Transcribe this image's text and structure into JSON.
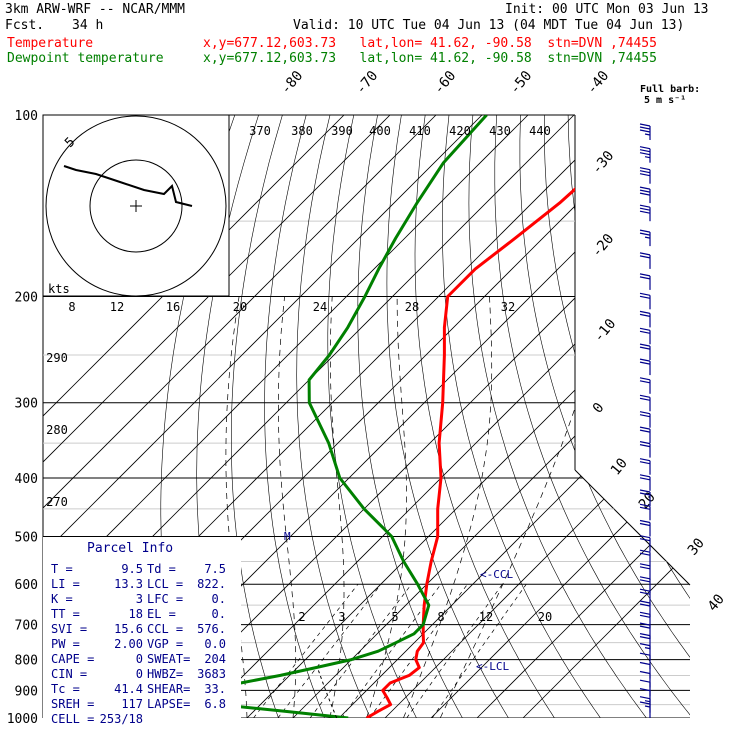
{
  "header": {
    "model": "3km ARW-WRF -- NCAR/MMM",
    "init": "Init: 00 UTC Mon 03 Jun 13",
    "fcst_label": "Fcst.",
    "fcst_value": "34 h",
    "valid": "Valid: 10 UTC Tue 04 Jun 13 (04 MDT Tue 04 Jun 13)",
    "temperature_label": "Temperature",
    "dewpoint_label": "Dewpoint temperature",
    "location_temp": "x,y=677.12,603.73   lat,lon= 41.62, -90.58  stn=DVN ,74455",
    "location_dew": "x,y=677.12,603.73   lat,lon= 41.62, -90.58  stn=DVN ,74455"
  },
  "barb_legend": {
    "line1": "Full barb:",
    "line2": "5 m s⁻¹"
  },
  "colors": {
    "temperature": "#ff0000",
    "dewpoint": "#008000",
    "barbs": "#00008b",
    "parcel": "#00008b"
  },
  "parcel_info": {
    "title": "Parcel Info",
    "rows": [
      [
        "T  =",
        "9.5",
        "Td =",
        "7.5"
      ],
      [
        "LI =",
        "13.3",
        "LCL =",
        "822."
      ],
      [
        "K  =",
        "3",
        "LFC =",
        "0."
      ],
      [
        "TT =",
        "18",
        "EL  =",
        "0."
      ],
      [
        "SVI =",
        "15.6",
        "CCL =",
        "576."
      ],
      [
        "PW =",
        "2.00",
        "VGP =",
        "0.0"
      ],
      [
        "CAPE =",
        "0",
        "SWEAT=",
        "204"
      ],
      [
        "CIN =",
        "0",
        "HWBZ=",
        "3683"
      ],
      [
        "Tc =",
        "41.4",
        "SHEAR=",
        "33."
      ],
      [
        "SREH =",
        "117",
        "LAPSE=",
        "6.8"
      ],
      [
        "CELL =",
        "253/18",
        "",
        ""
      ]
    ]
  },
  "annotations": {
    "ccl": "<-CCL",
    "lcl": "<-LCL",
    "m": "M"
  },
  "chart_data": {
    "type": "line",
    "title": "Skew-T log-P sounding",
    "ylabel": "Pressure (hPa)",
    "pressure_ticks": [
      100,
      200,
      300,
      400,
      500,
      600,
      700,
      800,
      900,
      1000
    ],
    "isotherm_labels": [
      -80,
      -70,
      -60,
      -50,
      -40,
      -30,
      -20,
      -10,
      0,
      10,
      20,
      30,
      40
    ],
    "theta_labels_top": [
      370,
      380,
      390,
      400,
      410,
      420,
      430,
      440
    ],
    "theta_labels_left": [
      290,
      280,
      270
    ],
    "mixing_ratio_labels_upper": [
      8,
      12,
      16,
      20,
      24,
      28,
      32
    ],
    "mixing_ratio_labels_lower": [
      2,
      3,
      5,
      8,
      12,
      20
    ],
    "hodograph_ring_label": "5",
    "hodograph_units": "kts",
    "series": [
      {
        "name": "Temperature",
        "pressure": [
          1000,
          975,
          950,
          925,
          900,
          875,
          850,
          825,
          800,
          775,
          750,
          725,
          700,
          650,
          600,
          550,
          500,
          450,
          400,
          350,
          300,
          250,
          225,
          200,
          180,
          160,
          140,
          120,
          110,
          100
        ],
        "temperature": [
          16.0,
          17.0,
          18.3,
          16.0,
          13.5,
          13.5,
          16.0,
          16.5,
          14.0,
          12.5,
          12.0,
          10.0,
          8.0,
          4.0,
          0.0,
          -4.0,
          -8.0,
          -14.0,
          -20.0,
          -28.0,
          -36.0,
          -46.0,
          -52.0,
          -58.0,
          -58.0,
          -56.0,
          -54.0,
          -53.0,
          -53.0,
          -55.0
        ]
      },
      {
        "name": "Dewpoint temperature",
        "pressure": [
          1000,
          975,
          950,
          925,
          900,
          875,
          850,
          825,
          800,
          775,
          750,
          725,
          700,
          650,
          600,
          550,
          500,
          450,
          400,
          350,
          300,
          275,
          250,
          225,
          200,
          180,
          160,
          140,
          120,
          100
        ],
        "temperature": [
          12.0,
          -3.0,
          -19.0,
          -24.0,
          -26.0,
          -19.0,
          -12.0,
          -6.0,
          0.0,
          4.0,
          6.0,
          8.0,
          8.0,
          5.0,
          -2.0,
          -10.0,
          -18.0,
          -30.0,
          -42.0,
          -52.0,
          -65.0,
          -70.0,
          -71.0,
          -73.0,
          -76.0,
          -79.0,
          -82.0,
          -85.0,
          -88.0,
          -89.0
        ]
      }
    ],
    "hodograph": {
      "u": [
        -18,
        -15,
        -10,
        -4,
        2,
        7,
        9,
        10,
        14
      ],
      "v": [
        10,
        9,
        8,
        6,
        4,
        3,
        5,
        1,
        0
      ]
    },
    "wind_barbs": {
      "pressure": [
        110,
        120,
        130,
        140,
        150,
        165,
        180,
        195,
        210,
        225,
        240,
        255,
        270,
        290,
        310,
        330,
        350,
        370,
        395,
        420,
        445,
        470,
        500,
        530,
        560,
        590,
        620,
        650,
        680,
        710,
        740,
        770,
        800,
        830,
        860,
        890,
        920,
        950,
        980,
        1000
      ],
      "speed_ms": [
        18,
        18,
        17,
        17,
        16,
        14,
        12,
        11,
        11,
        11,
        11,
        11,
        12,
        12,
        12,
        12,
        12,
        12,
        11,
        11,
        11,
        10,
        10,
        10,
        10,
        10,
        10,
        10,
        10,
        10,
        10,
        10,
        8,
        5,
        5,
        5,
        6,
        7,
        8,
        9
      ]
    }
  }
}
